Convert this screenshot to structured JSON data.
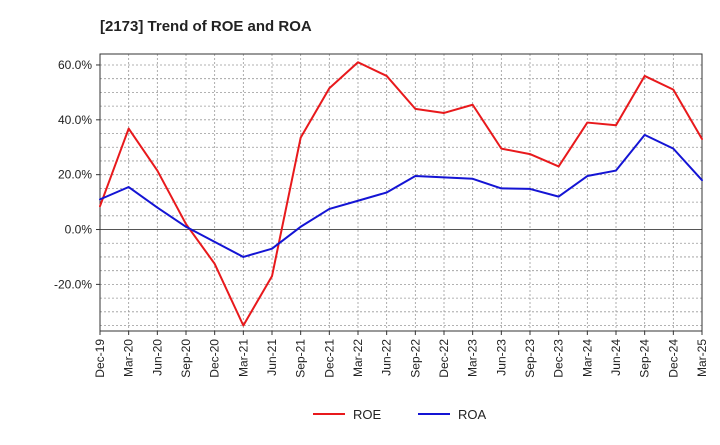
{
  "chart_data": {
    "type": "line",
    "title": "[2173]  Trend of ROE and ROA",
    "xlabel": "",
    "ylabel": "",
    "x": [
      "Dec-19",
      "Mar-20",
      "Jun-20",
      "Sep-20",
      "Dec-20",
      "Mar-21",
      "Jun-21",
      "Sep-21",
      "Dec-21",
      "Mar-22",
      "Jun-22",
      "Sep-22",
      "Dec-22",
      "Mar-23",
      "Jun-23",
      "Sep-23",
      "Dec-23",
      "Mar-24",
      "Jun-24",
      "Sep-24",
      "Dec-24",
      "Mar-25"
    ],
    "x_tick_labels": [
      "Dec-19",
      "Mar-20",
      "Jun-20",
      "Sep-20",
      "Dec-20",
      "Mar-21",
      "Jun-21",
      "Sep-21",
      "Dec-21",
      "Mar-22",
      "Jun-22",
      "Sep-22",
      "Dec-22",
      "Mar-23",
      "Jun-23",
      "Sep-23",
      "Dec-23",
      "Mar-24",
      "Jun-24",
      "Sep-24",
      "Dec-24",
      "Mar-25"
    ],
    "y_tick_values": [
      -20,
      0,
      20,
      40,
      60
    ],
    "y_tick_labels": [
      "-20.0%",
      "0.0%",
      "20.0%",
      "40.0%",
      "60.0%"
    ],
    "ylim": [
      -37,
      64
    ],
    "grid": true,
    "legend_position": "bottom-center",
    "series": [
      {
        "name": "ROE",
        "color": "#e8191c",
        "values": [
          8.5,
          36.8,
          21.5,
          2.0,
          -12.5,
          -35.0,
          -17.0,
          33.5,
          51.5,
          61.0,
          56.0,
          44.0,
          42.5,
          45.5,
          29.5,
          27.5,
          23.0,
          39.0,
          38.0,
          56.0,
          51.0,
          33.0
        ]
      },
      {
        "name": "ROA",
        "color": "#1414d4",
        "values": [
          11.0,
          15.5,
          8.0,
          1.0,
          -4.5,
          -10.0,
          -7.0,
          1.0,
          7.5,
          10.5,
          13.5,
          19.5,
          19.0,
          18.5,
          15.0,
          14.8,
          12.0,
          19.5,
          21.5,
          34.5,
          29.5,
          18.0
        ]
      }
    ]
  }
}
